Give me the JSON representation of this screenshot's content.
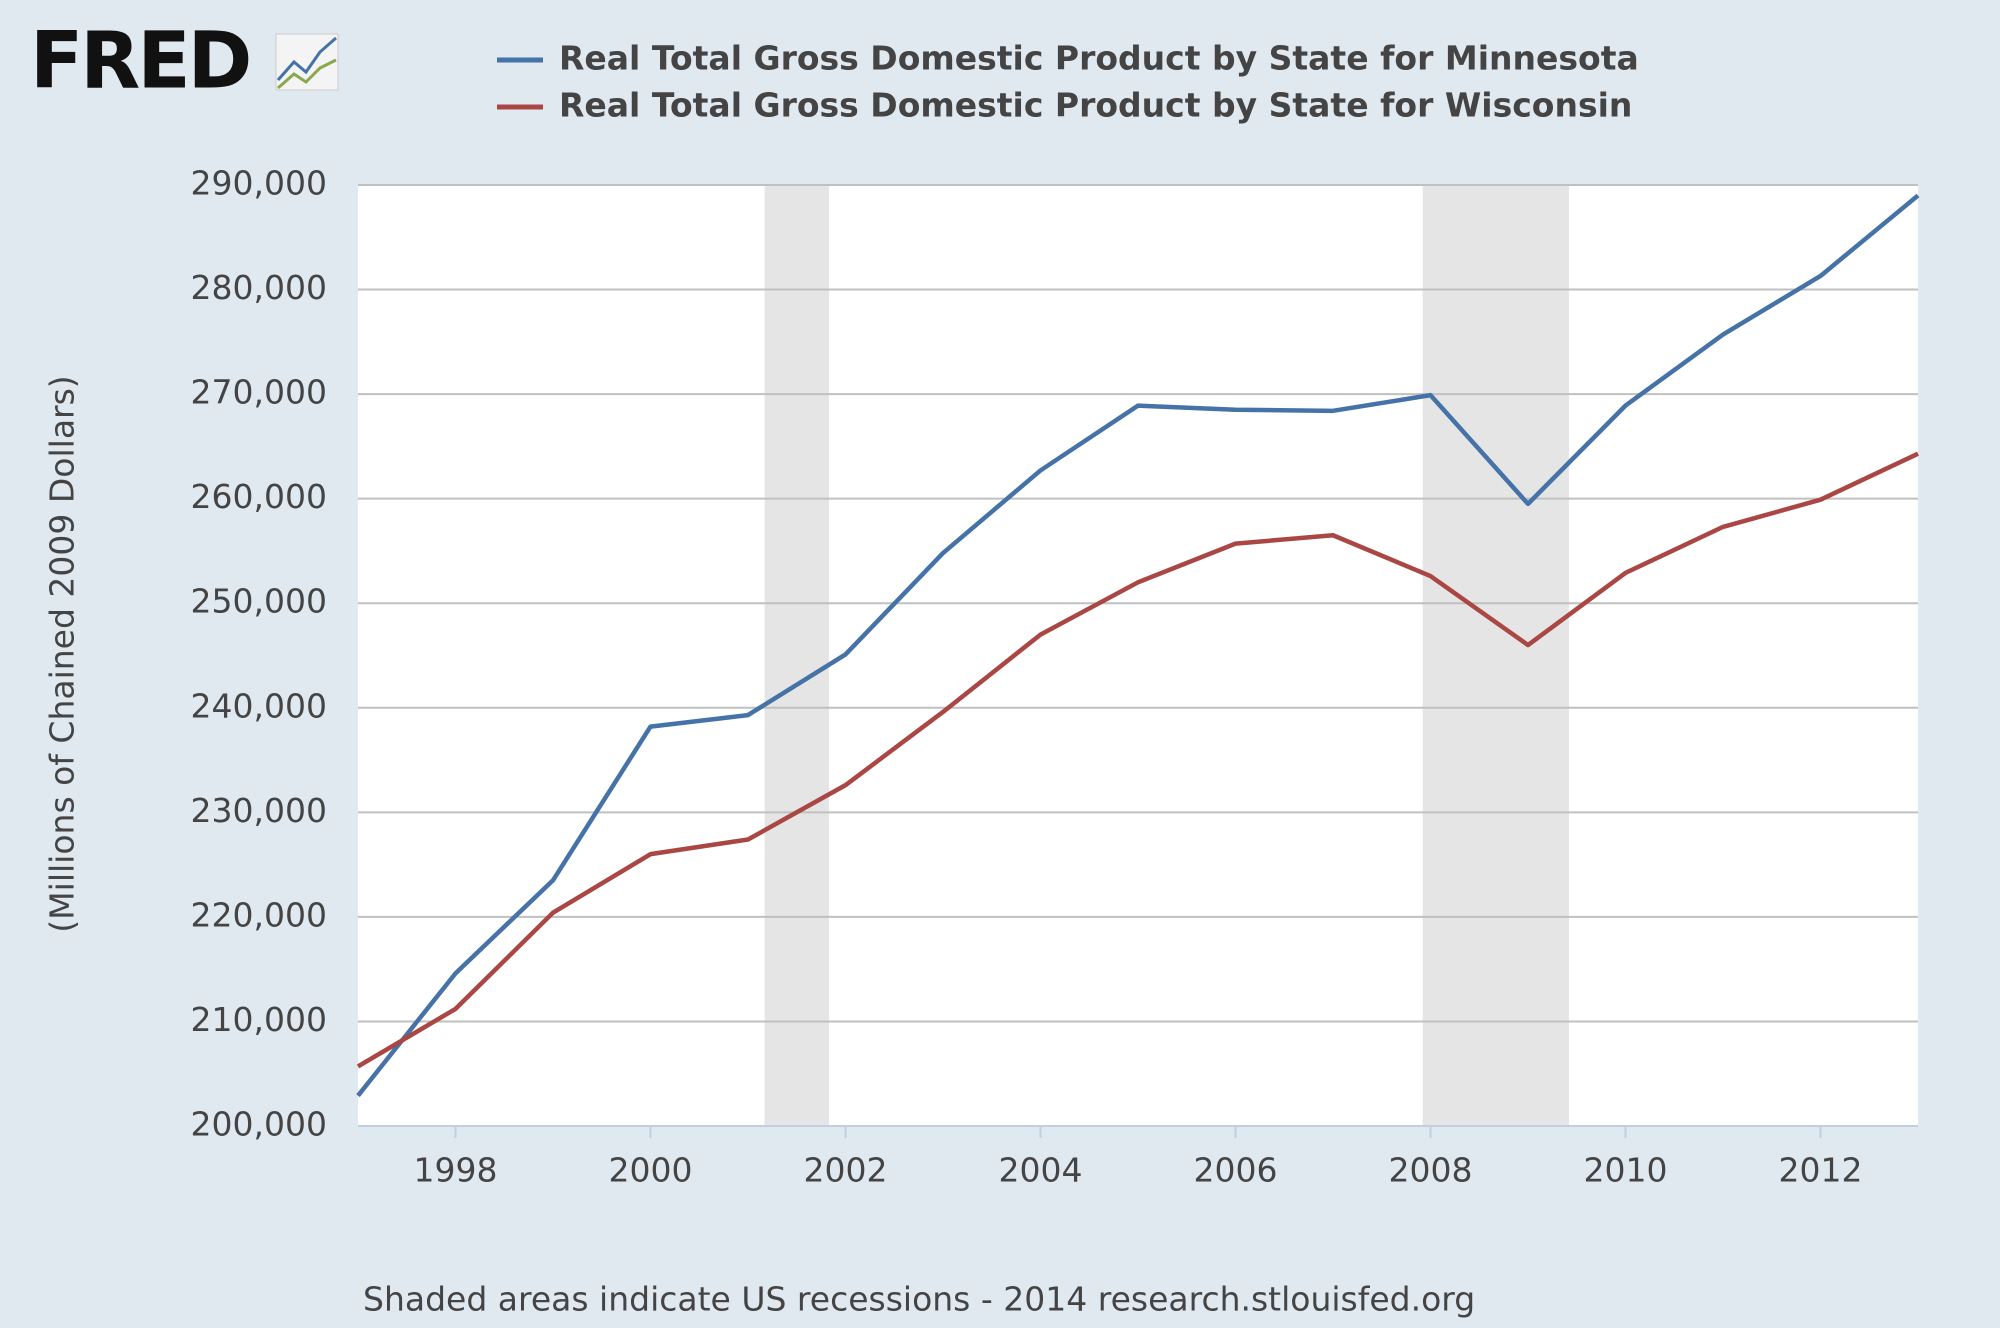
{
  "logo": "FRED",
  "chart_data": {
    "type": "line",
    "y_label": "(Millions of Chained 2009 Dollars)",
    "note": "Shaded areas indicate US recessions - 2014 research.stlouisfed.org",
    "x": [
      1997,
      1998,
      1999,
      2000,
      2001,
      2002,
      2003,
      2004,
      2005,
      2006,
      2007,
      2008,
      2009,
      2010,
      2011,
      2012,
      2013
    ],
    "series": [
      {
        "name": "Real Total Gross Domestic Product by State for Minnesota",
        "color": "#4572a7",
        "values": [
          202900,
          214600,
          223500,
          238200,
          239300,
          245100,
          254800,
          262700,
          268900,
          268500,
          268400,
          269900,
          259500,
          268900,
          275700,
          281300,
          289000
        ]
      },
      {
        "name": "Real Total Gross Domestic Product by State for Wisconsin",
        "color": "#aa4643",
        "values": [
          205700,
          211200,
          220400,
          226000,
          227400,
          232600,
          239600,
          247000,
          252000,
          255700,
          256500,
          252600,
          246000,
          252900,
          257300,
          259900,
          264300
        ]
      }
    ],
    "recessions": [
      [
        2001.17,
        2001.83
      ],
      [
        2007.92,
        2009.42
      ]
    ],
    "recession_color": "#e5e5e5",
    "xlim": [
      1997,
      2013
    ],
    "xticks": [
      1998,
      2000,
      2002,
      2004,
      2006,
      2008,
      2010,
      2012
    ],
    "ylim": [
      200000,
      290000
    ],
    "yticks": [
      {
        "value": 200000,
        "label": "200,000"
      },
      {
        "value": 210000,
        "label": "210,000"
      },
      {
        "value": 220000,
        "label": "220,000"
      },
      {
        "value": 230000,
        "label": "230,000"
      },
      {
        "value": 240000,
        "label": "240,000"
      },
      {
        "value": 250000,
        "label": "250,000"
      },
      {
        "value": 260000,
        "label": "260,000"
      },
      {
        "value": 270000,
        "label": "270,000"
      },
      {
        "value": 280000,
        "label": "280,000"
      },
      {
        "value": 290000,
        "label": "290,000"
      }
    ],
    "grid": true
  }
}
